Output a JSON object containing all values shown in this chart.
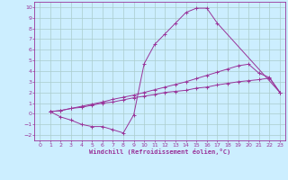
{
  "xlabel": "Windchill (Refroidissement éolien,°C)",
  "bg_color": "#cceeff",
  "grid_color": "#aacccc",
  "line_color": "#993399",
  "xlim": [
    -0.5,
    23.5
  ],
  "ylim": [
    -2.5,
    10.5
  ],
  "xticks": [
    0,
    1,
    2,
    3,
    4,
    5,
    6,
    7,
    8,
    9,
    10,
    11,
    12,
    13,
    14,
    15,
    16,
    17,
    18,
    19,
    20,
    21,
    22,
    23
  ],
  "yticks": [
    -2,
    -1,
    0,
    1,
    2,
    3,
    4,
    5,
    6,
    7,
    8,
    9,
    10
  ],
  "line1_x": [
    1,
    2,
    3,
    4,
    5,
    6,
    7,
    8,
    9,
    10,
    11,
    12,
    13,
    14,
    15,
    16,
    17,
    23
  ],
  "line1_y": [
    0.2,
    -0.3,
    -0.6,
    -1.0,
    -1.2,
    -1.2,
    -1.5,
    -1.8,
    -0.1,
    4.7,
    6.5,
    7.5,
    8.5,
    9.5,
    9.9,
    9.9,
    8.5,
    2.0
  ],
  "line2_x": [
    1,
    2,
    3,
    4,
    5,
    6,
    7,
    8,
    9,
    10,
    11,
    12,
    13,
    14,
    15,
    16,
    17,
    18,
    19,
    20,
    21,
    22,
    23
  ],
  "line2_y": [
    0.2,
    0.3,
    0.5,
    0.7,
    0.9,
    1.1,
    1.35,
    1.55,
    1.75,
    2.0,
    2.25,
    2.5,
    2.75,
    3.0,
    3.3,
    3.6,
    3.9,
    4.2,
    4.5,
    4.65,
    3.8,
    3.4,
    2.0
  ],
  "line3_x": [
    1,
    2,
    3,
    4,
    5,
    6,
    7,
    8,
    9,
    10,
    11,
    12,
    13,
    14,
    15,
    16,
    17,
    18,
    19,
    20,
    21,
    22,
    23
  ],
  "line3_y": [
    0.2,
    0.3,
    0.5,
    0.6,
    0.8,
    1.0,
    1.1,
    1.3,
    1.5,
    1.65,
    1.8,
    2.0,
    2.1,
    2.2,
    2.4,
    2.5,
    2.7,
    2.85,
    3.0,
    3.1,
    3.2,
    3.35,
    2.0
  ]
}
